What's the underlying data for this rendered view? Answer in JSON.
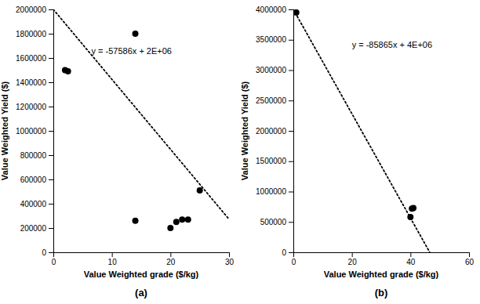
{
  "chart_data": [
    {
      "type": "scatter",
      "title": "(a)",
      "xlabel": "Value Weighted grade ($/kg)",
      "ylabel": "Value Weighted Yield ($)",
      "series": [
        {
          "type": "scatter",
          "x": [
            2,
            2.5,
            14,
            14,
            20,
            21,
            22,
            23,
            25
          ],
          "values": [
            1500000,
            1490000,
            1800000,
            260000,
            200000,
            250000,
            270000,
            270000,
            510000
          ],
          "color": "#000000",
          "marker": "circle"
        },
        {
          "type": "line",
          "x": [
            0,
            30
          ],
          "values": [
            2000000,
            272420
          ],
          "color": "#000000",
          "line_style": "dotted"
        }
      ],
      "annotations": [
        {
          "text": "y = -57586x + 2E+06",
          "x": 6.5,
          "y": 1650000
        }
      ],
      "xlim": [
        0,
        30
      ],
      "ylim": [
        0,
        2000000
      ],
      "xticks": [
        0,
        10,
        20,
        30
      ],
      "yticks": [
        0,
        200000,
        400000,
        600000,
        800000,
        1000000,
        1200000,
        1400000,
        1600000,
        1800000,
        2000000
      ],
      "grid": false
    },
    {
      "type": "scatter",
      "title": "(b)",
      "xlabel": "Value Weighted grade ($/kg)",
      "ylabel": "Value Weighted Yield ($)",
      "series": [
        {
          "type": "scatter",
          "x": [
            1,
            40,
            40.5,
            41
          ],
          "values": [
            3950000,
            580000,
            720000,
            730000
          ],
          "color": "#000000",
          "marker": "circle"
        },
        {
          "type": "line",
          "x": [
            0,
            46.5847551
          ],
          "values": [
            4000000,
            0
          ],
          "color": "#000000",
          "line_style": "dotted"
        }
      ],
      "annotations": [
        {
          "text": "y = -85865x + 4E+06",
          "x": 20,
          "y": 3400000
        }
      ],
      "xlim": [
        0,
        60
      ],
      "ylim": [
        0,
        4000000
      ],
      "xticks": [
        0,
        20,
        40,
        60
      ],
      "yticks": [
        0,
        500000,
        1000000,
        1500000,
        2000000,
        2500000,
        3000000,
        3500000,
        4000000
      ],
      "grid": false
    }
  ]
}
